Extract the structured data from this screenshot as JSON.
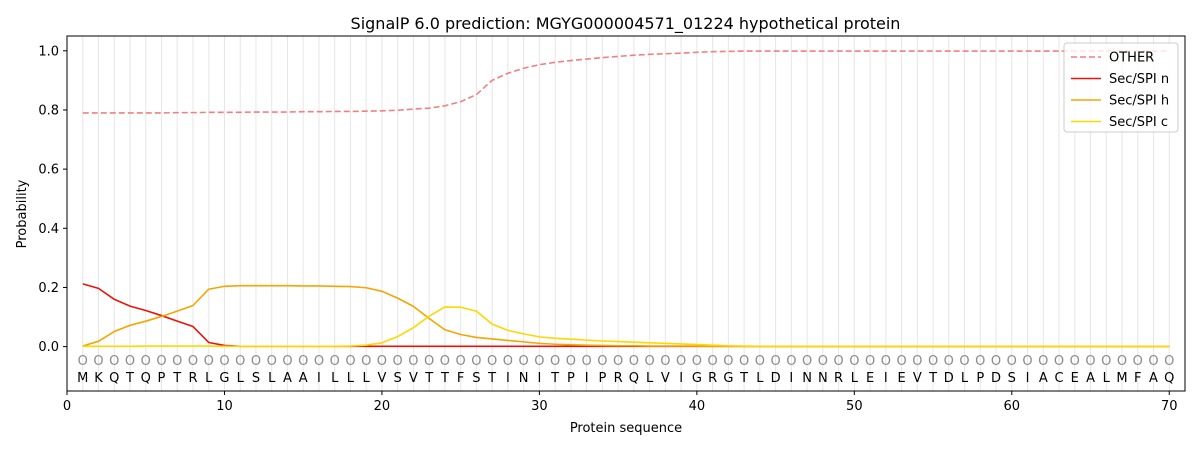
{
  "chart_data": {
    "type": "line",
    "title": "SignalP 6.0 prediction: MGYG000004571_01224 hypothetical protein",
    "xlabel": "Protein sequence",
    "ylabel": "Probability",
    "xlim": [
      0,
      71
    ],
    "ylim": [
      -0.15,
      1.05
    ],
    "x_ticks": [
      0,
      10,
      20,
      30,
      40,
      50,
      60,
      70
    ],
    "y_ticks": [
      0.0,
      0.2,
      0.4,
      0.6,
      0.8,
      1.0
    ],
    "x_tick_labels": [
      "0",
      "10",
      "20",
      "30",
      "40",
      "50",
      "60",
      "70"
    ],
    "y_tick_labels": [
      "0.0",
      "0.2",
      "0.4",
      "0.6",
      "0.8",
      "1.0"
    ],
    "grid": "vertical lines at each residue",
    "legend_position": "top-right",
    "sequence": [
      "M",
      "K",
      "Q",
      "T",
      "Q",
      "P",
      "T",
      "R",
      "L",
      "G",
      "L",
      "S",
      "L",
      "A",
      "A",
      "I",
      "L",
      "L",
      "L",
      "V",
      "S",
      "V",
      "T",
      "T",
      "F",
      "S",
      "T",
      "I",
      "N",
      "I",
      "T",
      "P",
      "I",
      "P",
      "R",
      "Q",
      "L",
      "V",
      "I",
      "G",
      "R",
      "G",
      "T",
      "L",
      "D",
      "I",
      "N",
      "N",
      "R",
      "L",
      "E",
      "I",
      "E",
      "V",
      "T",
      "D",
      "L",
      "P",
      "D",
      "S",
      "I",
      "A",
      "C",
      "E",
      "A",
      "L",
      "M",
      "F",
      "A",
      "Q"
    ],
    "marker_symbol": "O",
    "series": [
      {
        "name": "OTHER",
        "color": "#f08080",
        "style": "dashed",
        "values": [
          0.79,
          0.79,
          0.79,
          0.79,
          0.79,
          0.79,
          0.791,
          0.791,
          0.792,
          0.792,
          0.792,
          0.793,
          0.793,
          0.793,
          0.794,
          0.794,
          0.795,
          0.795,
          0.796,
          0.797,
          0.799,
          0.803,
          0.806,
          0.814,
          0.828,
          0.852,
          0.9,
          0.924,
          0.941,
          0.953,
          0.961,
          0.967,
          0.972,
          0.977,
          0.981,
          0.985,
          0.988,
          0.99,
          0.992,
          0.995,
          0.997,
          0.998,
          0.999,
          0.999,
          0.999,
          0.999,
          0.999,
          0.999,
          0.999,
          0.999,
          0.999,
          0.999,
          0.999,
          0.999,
          0.999,
          0.999,
          0.999,
          0.999,
          0.999,
          0.999,
          0.999,
          0.999,
          0.999,
          0.999,
          0.999,
          0.999,
          0.999,
          0.999,
          0.999,
          0.999
        ]
      },
      {
        "name": "Sec/SPI n",
        "color": "#e8140c",
        "style": "solid",
        "values": [
          0.212,
          0.197,
          0.16,
          0.137,
          0.122,
          0.105,
          0.086,
          0.068,
          0.014,
          0.004,
          0.001,
          0.001,
          0.001,
          0.001,
          0.001,
          0.001,
          0.001,
          0.001,
          0.001,
          0.001,
          0.001,
          0.001,
          0.001,
          0.001,
          0.001,
          0.001,
          0.001,
          0.001,
          0.001,
          0.001,
          0.001,
          0.001,
          0.001,
          0.001,
          0.001,
          0.001,
          0.001,
          0.001,
          0.001,
          0.001,
          0.001,
          0.001,
          0.001,
          0.001,
          0.001,
          0.001,
          0.001,
          0.001,
          0.001,
          0.001,
          0.001,
          0.001,
          0.001,
          0.001,
          0.001,
          0.001,
          0.001,
          0.001,
          0.001,
          0.001,
          0.001,
          0.001,
          0.001,
          0.001,
          0.001,
          0.001,
          0.001,
          0.001,
          0.001,
          0.001
        ]
      },
      {
        "name": "Sec/SPI h",
        "color": "#f5a500",
        "style": "solid",
        "values": [
          0.002,
          0.018,
          0.051,
          0.072,
          0.086,
          0.102,
          0.12,
          0.139,
          0.194,
          0.204,
          0.206,
          0.206,
          0.206,
          0.206,
          0.205,
          0.205,
          0.204,
          0.203,
          0.199,
          0.187,
          0.164,
          0.136,
          0.095,
          0.057,
          0.041,
          0.031,
          0.026,
          0.021,
          0.016,
          0.011,
          0.008,
          0.006,
          0.005,
          0.004,
          0.003,
          0.003,
          0.002,
          0.002,
          0.002,
          0.002,
          0.001,
          0.001,
          0.001,
          0.001,
          0.001,
          0.001,
          0.001,
          0.001,
          0.001,
          0.001,
          0.001,
          0.001,
          0.001,
          0.001,
          0.001,
          0.001,
          0.001,
          0.001,
          0.001,
          0.001,
          0.001,
          0.001,
          0.001,
          0.001,
          0.001,
          0.001,
          0.001,
          0.001,
          0.001,
          0.001
        ]
      },
      {
        "name": "Sec/SPI c",
        "color": "#ffd700",
        "style": "solid",
        "values": [
          0.001,
          0.001,
          0.001,
          0.001,
          0.002,
          0.002,
          0.002,
          0.002,
          0.002,
          0.001,
          0.001,
          0.001,
          0.001,
          0.001,
          0.001,
          0.001,
          0.001,
          0.002,
          0.005,
          0.013,
          0.034,
          0.064,
          0.103,
          0.134,
          0.133,
          0.12,
          0.076,
          0.055,
          0.043,
          0.033,
          0.028,
          0.025,
          0.022,
          0.019,
          0.017,
          0.015,
          0.013,
          0.011,
          0.009,
          0.007,
          0.005,
          0.003,
          0.002,
          0.001,
          0.001,
          0.001,
          0.001,
          0.001,
          0.001,
          0.001,
          0.001,
          0.001,
          0.001,
          0.001,
          0.001,
          0.001,
          0.001,
          0.001,
          0.001,
          0.001,
          0.001,
          0.001,
          0.001,
          0.001,
          0.001,
          0.001,
          0.001,
          0.001,
          0.001,
          0.001
        ]
      }
    ]
  }
}
